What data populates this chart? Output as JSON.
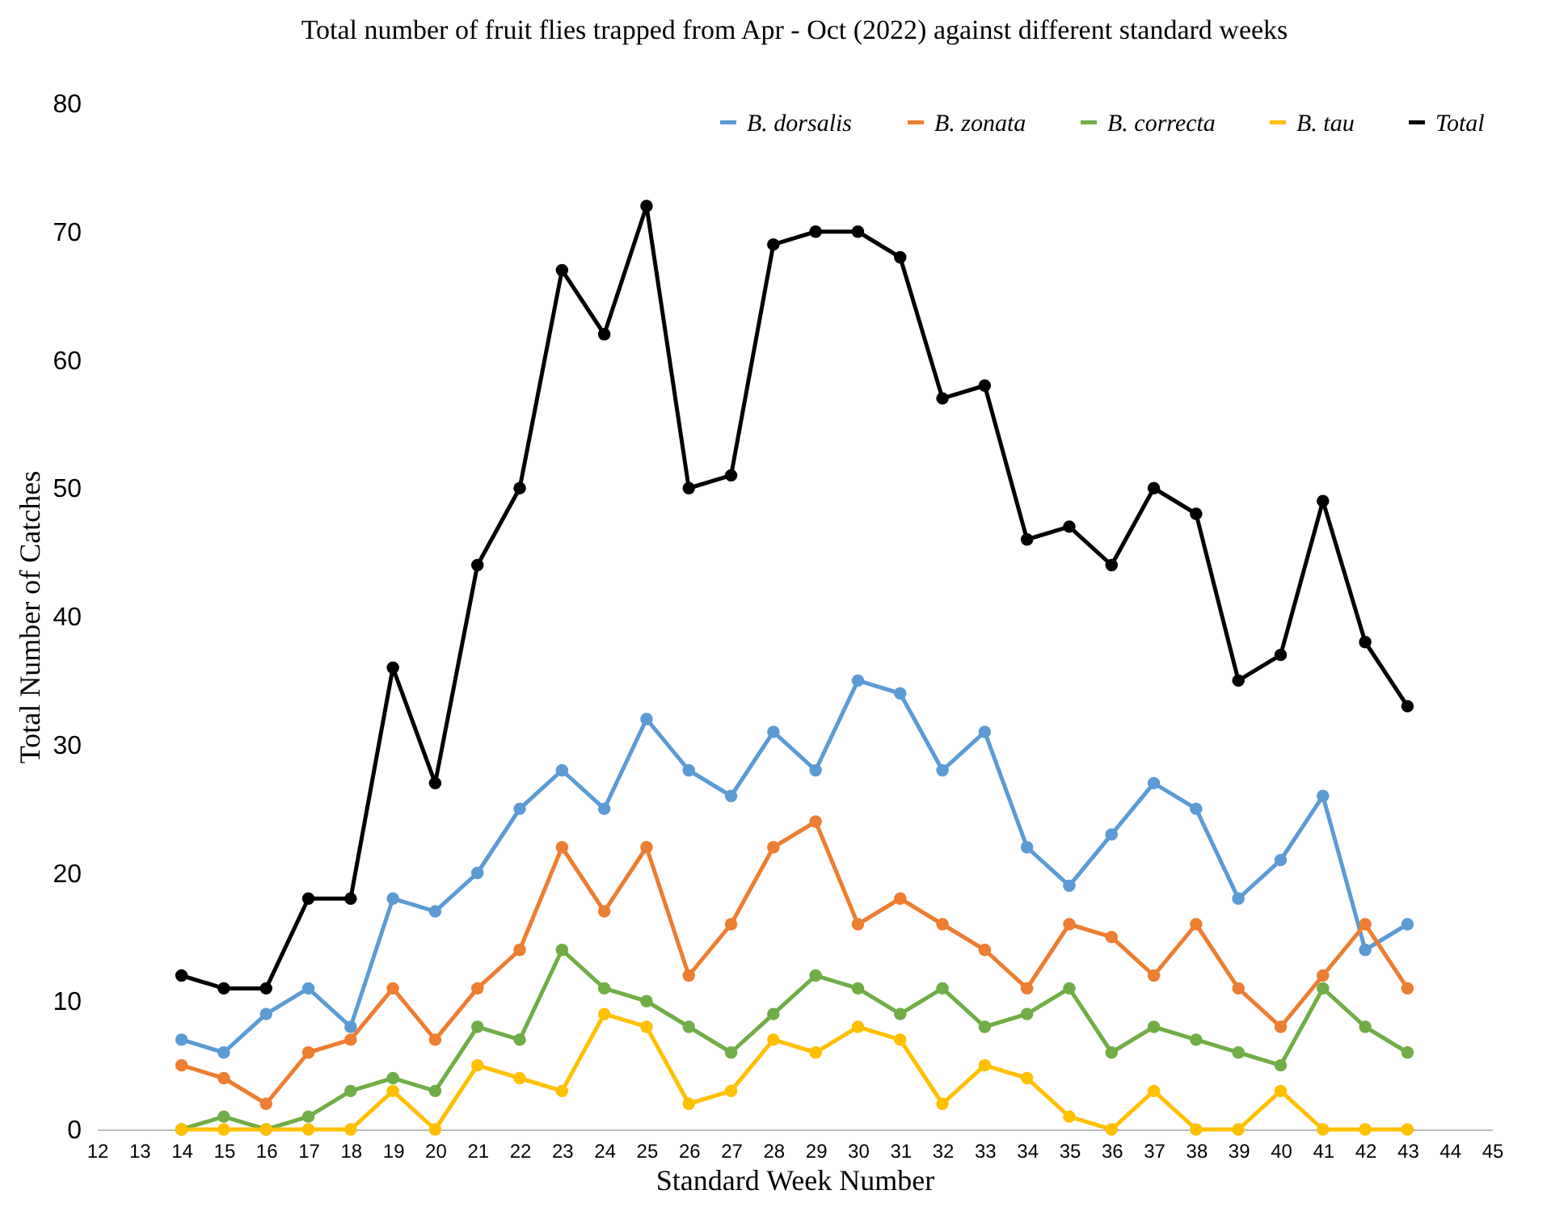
{
  "chart_data": {
    "type": "line",
    "title": "Total number of fruit flies trapped from Apr - Oct (2022) against different standard weeks",
    "xlabel": "Standard Week Number",
    "ylabel": "Total Number of Catches",
    "x": [
      14,
      15,
      16,
      17,
      18,
      19,
      20,
      21,
      22,
      23,
      24,
      25,
      26,
      27,
      28,
      29,
      30,
      31,
      32,
      33,
      34,
      35,
      36,
      37,
      38,
      39,
      40,
      41,
      42,
      43
    ],
    "series": [
      {
        "name": "B. dorsalis",
        "color": "#5b9bd5",
        "values": [
          7,
          6,
          9,
          11,
          8,
          18,
          17,
          20,
          25,
          28,
          25,
          32,
          28,
          26,
          31,
          28,
          35,
          34,
          28,
          31,
          22,
          19,
          23,
          27,
          25,
          18,
          21,
          26,
          14,
          16
        ]
      },
      {
        "name": "B. zonata",
        "color": "#ed7d31",
        "values": [
          5,
          4,
          2,
          6,
          7,
          11,
          7,
          11,
          14,
          22,
          17,
          22,
          12,
          16,
          22,
          24,
          16,
          18,
          16,
          14,
          11,
          16,
          15,
          12,
          16,
          11,
          8,
          12,
          16,
          11
        ]
      },
      {
        "name": "B. correcta",
        "color": "#70ad47",
        "values": [
          0,
          1,
          0,
          1,
          3,
          4,
          3,
          8,
          7,
          14,
          11,
          10,
          8,
          6,
          9,
          12,
          11,
          9,
          11,
          8,
          9,
          11,
          6,
          8,
          7,
          6,
          5,
          11,
          8,
          6
        ]
      },
      {
        "name": "B. tau",
        "color": "#ffc000",
        "values": [
          0,
          0,
          0,
          0,
          0,
          3,
          0,
          5,
          4,
          3,
          9,
          8,
          2,
          3,
          7,
          6,
          8,
          7,
          2,
          5,
          4,
          1,
          0,
          3,
          0,
          0,
          3,
          0,
          0,
          0
        ]
      },
      {
        "name": "Total",
        "color": "#000000",
        "values": [
          12,
          11,
          11,
          18,
          18,
          36,
          27,
          44,
          50,
          67,
          62,
          72,
          50,
          51,
          69,
          70,
          70,
          68,
          57,
          58,
          46,
          47,
          44,
          50,
          48,
          35,
          37,
          49,
          38,
          33
        ]
      }
    ],
    "xlim": [
      12,
      45
    ],
    "xticks": [
      12,
      13,
      14,
      15,
      16,
      17,
      18,
      19,
      20,
      21,
      22,
      23,
      24,
      25,
      26,
      27,
      28,
      29,
      30,
      31,
      32,
      33,
      34,
      35,
      36,
      37,
      38,
      39,
      40,
      41,
      42,
      43,
      44,
      45
    ],
    "ylim": [
      0,
      80
    ],
    "yticks": [
      0,
      10,
      20,
      30,
      40,
      50,
      60,
      70,
      80
    ],
    "grid": false,
    "legend": "top right",
    "marker": "circle",
    "line_style": "solid"
  }
}
